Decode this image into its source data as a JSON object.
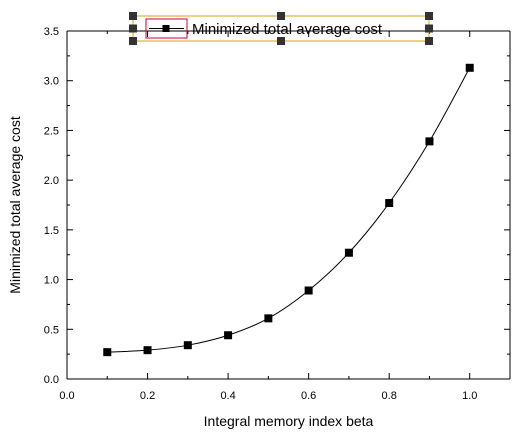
{
  "chart_data": {
    "type": "line",
    "xlabel": "Integral memory index beta",
    "ylabel": "Minimized total average cost",
    "xlim": [
      0.0,
      1.1
    ],
    "ylim": [
      0.0,
      3.5
    ],
    "x_ticks": [
      0.0,
      0.2,
      0.4,
      0.6,
      0.8,
      1.0
    ],
    "y_ticks": [
      0.0,
      0.5,
      1.0,
      1.5,
      2.0,
      2.5,
      3.0,
      3.5
    ],
    "x_tick_labels": [
      "0.0",
      "0.2",
      "0.4",
      "0.6",
      "0.8",
      "1.0"
    ],
    "y_tick_labels": [
      "0.0",
      "0.5",
      "1.0",
      "1.5",
      "2.0",
      "2.5",
      "3.0",
      "3.5"
    ],
    "grid": false,
    "legend_position": "top-center",
    "series": [
      {
        "name": "Minimized total average cost",
        "color": "#000000",
        "marker": "square",
        "x": [
          0.1,
          0.2,
          0.3,
          0.4,
          0.5,
          0.6,
          0.7,
          0.8,
          0.9,
          1.0
        ],
        "y": [
          0.27,
          0.29,
          0.34,
          0.44,
          0.61,
          0.89,
          1.27,
          1.77,
          2.39,
          3.13
        ]
      }
    ],
    "legend_selection_color": "#333333",
    "legend_box_color": "#d4a017",
    "legend_sample_border_color": "#cc0033"
  }
}
